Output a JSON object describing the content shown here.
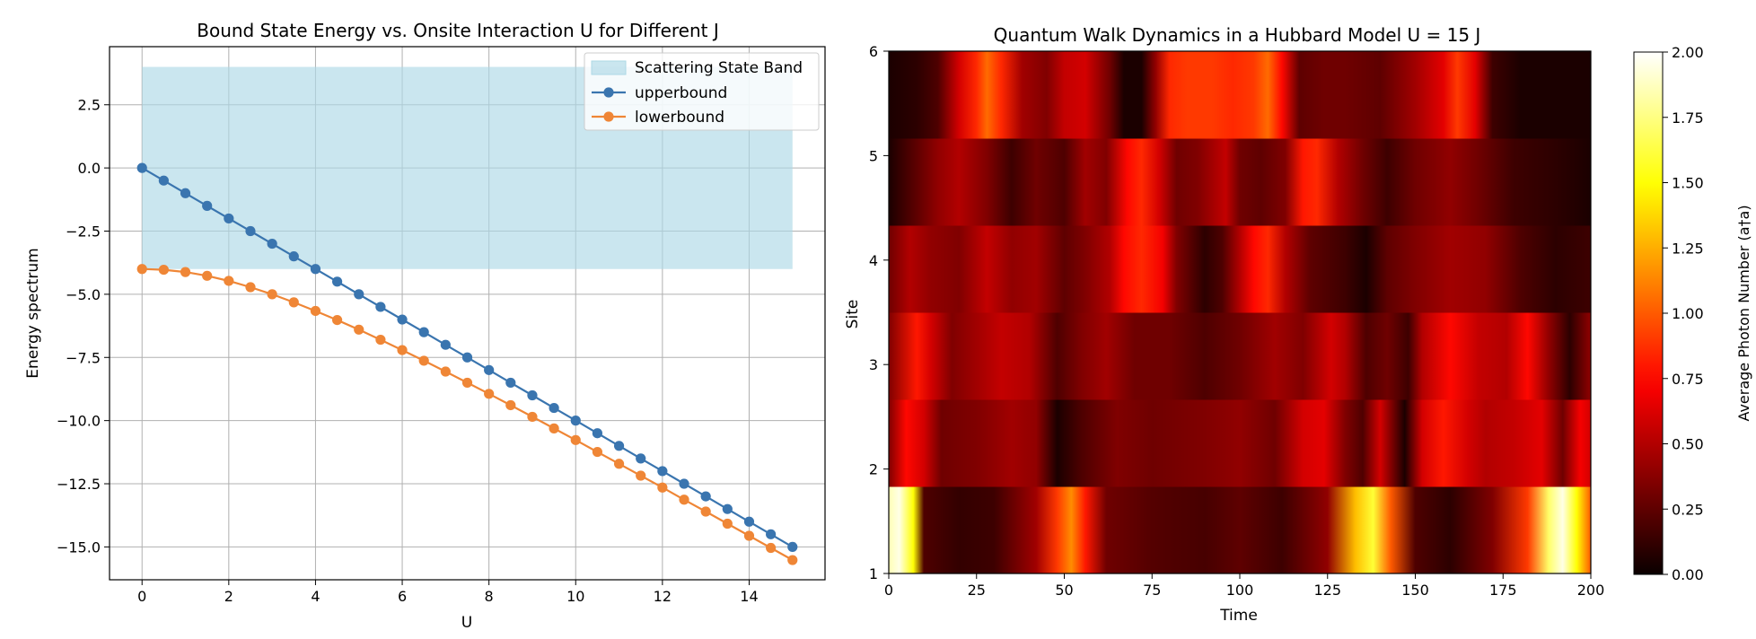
{
  "chart_data": [
    {
      "type": "line",
      "title": "Bound State Energy vs. Onsite Interaction U for Different J",
      "xlabel": "U",
      "ylabel": "Energy  spectrum",
      "xlim": [
        -0.75,
        15.75
      ],
      "ylim": [
        -16.3,
        4.8
      ],
      "xticks": [
        0,
        2,
        4,
        6,
        8,
        10,
        12,
        14
      ],
      "yticks": [
        2.5,
        0.0,
        -2.5,
        -5.0,
        -7.5,
        -10.0,
        -12.5,
        -15.0
      ],
      "ytick_labels": [
        "2.5",
        "0.0",
        "−2.5",
        "−5.0",
        "−7.5",
        "−10.0",
        "−12.5",
        "−15.0"
      ],
      "grid": true,
      "legend_position": "top-right",
      "band": {
        "name": "Scattering State Band",
        "x": [
          0,
          15
        ],
        "y_low": -4,
        "y_high": 4,
        "color": "#add8e6"
      },
      "x": [
        0,
        0.5,
        1,
        1.5,
        2,
        2.5,
        3,
        3.5,
        4,
        4.5,
        5,
        5.5,
        6,
        6.5,
        7,
        7.5,
        8,
        8.5,
        9,
        9.5,
        10,
        10.5,
        11,
        11.5,
        12,
        12.5,
        13,
        13.5,
        14,
        14.5,
        15
      ],
      "series": [
        {
          "name": "upperbound",
          "color": "#3a75af",
          "values": [
            0,
            -0.5,
            -1,
            -1.5,
            -2,
            -2.5,
            -3,
            -3.5,
            -4,
            -4.5,
            -5,
            -5.5,
            -6,
            -6.5,
            -7,
            -7.5,
            -8,
            -8.5,
            -9,
            -9.5,
            -10,
            -10.5,
            -11,
            -11.5,
            -12,
            -12.5,
            -13,
            -13.5,
            -14,
            -14.5,
            -15
          ]
        },
        {
          "name": "lowerbound",
          "color": "#ef8636",
          "values": [
            -4.0,
            -4.03,
            -4.12,
            -4.27,
            -4.47,
            -4.72,
            -5.0,
            -5.32,
            -5.66,
            -6.02,
            -6.4,
            -6.8,
            -7.21,
            -7.63,
            -8.06,
            -8.5,
            -8.94,
            -9.39,
            -9.85,
            -10.31,
            -10.77,
            -11.24,
            -11.71,
            -12.18,
            -12.65,
            -13.13,
            -13.6,
            -14.08,
            -14.56,
            -15.04,
            -15.52
          ]
        }
      ]
    },
    {
      "type": "heatmap",
      "title": "Quantum Walk Dynamics in a Hubbard Model U = 15 J",
      "xlabel": "Time",
      "ylabel": "Site",
      "xlim": [
        0,
        200
      ],
      "ylim": [
        1,
        6
      ],
      "xticks": [
        0,
        25,
        50,
        75,
        100,
        125,
        150,
        175,
        200
      ],
      "yticks": [
        1,
        2,
        3,
        4,
        5,
        6
      ],
      "colormap": "hot",
      "colorbar": {
        "label": "Average Photon Number (a†a)",
        "range": [
          0,
          2
        ],
        "ticks": [
          "0.00",
          "0.25",
          "0.50",
          "0.75",
          "1.00",
          "1.25",
          "1.50",
          "1.75",
          "2.00"
        ]
      },
      "rows": [
        {
          "site": 1,
          "keypoints": [
            [
              0,
              1.85
            ],
            [
              3,
              1.95
            ],
            [
              7,
              1.5
            ],
            [
              10,
              0.2
            ],
            [
              20,
              0.12
            ],
            [
              30,
              0.15
            ],
            [
              42,
              0.45
            ],
            [
              48,
              0.9
            ],
            [
              52,
              1.15
            ],
            [
              56,
              0.8
            ],
            [
              62,
              0.3
            ],
            [
              75,
              0.22
            ],
            [
              90,
              0.18
            ],
            [
              100,
              0.25
            ],
            [
              112,
              0.15
            ],
            [
              125,
              0.4
            ],
            [
              133,
              1.3
            ],
            [
              138,
              1.6
            ],
            [
              143,
              1.0
            ],
            [
              150,
              0.2
            ],
            [
              160,
              0.1
            ],
            [
              172,
              0.35
            ],
            [
              182,
              0.9
            ],
            [
              188,
              1.7
            ],
            [
              192,
              1.95
            ],
            [
              196,
              1.5
            ],
            [
              200,
              1.0
            ]
          ]
        },
        {
          "site": 2,
          "keypoints": [
            [
              0,
              0.35
            ],
            [
              5,
              0.75
            ],
            [
              10,
              0.6
            ],
            [
              15,
              0.3
            ],
            [
              25,
              0.35
            ],
            [
              35,
              0.45
            ],
            [
              42,
              0.4
            ],
            [
              48,
              0.05
            ],
            [
              55,
              0.2
            ],
            [
              65,
              0.35
            ],
            [
              75,
              0.3
            ],
            [
              90,
              0.35
            ],
            [
              100,
              0.4
            ],
            [
              110,
              0.3
            ],
            [
              118,
              0.6
            ],
            [
              124,
              0.65
            ],
            [
              130,
              0.35
            ],
            [
              135,
              0.2
            ],
            [
              140,
              0.6
            ],
            [
              147,
              0.05
            ],
            [
              152,
              0.6
            ],
            [
              158,
              0.8
            ],
            [
              165,
              0.6
            ],
            [
              170,
              0.5
            ],
            [
              178,
              0.55
            ],
            [
              186,
              0.65
            ],
            [
              192,
              0.3
            ],
            [
              197,
              0.7
            ],
            [
              200,
              0.6
            ]
          ]
        },
        {
          "site": 3,
          "keypoints": [
            [
              0,
              0.35
            ],
            [
              8,
              0.8
            ],
            [
              12,
              0.6
            ],
            [
              18,
              0.35
            ],
            [
              25,
              0.45
            ],
            [
              32,
              0.55
            ],
            [
              40,
              0.5
            ],
            [
              48,
              0.2
            ],
            [
              55,
              0.35
            ],
            [
              62,
              0.45
            ],
            [
              70,
              0.3
            ],
            [
              80,
              0.3
            ],
            [
              90,
              0.2
            ],
            [
              100,
              0.3
            ],
            [
              110,
              0.45
            ],
            [
              118,
              0.35
            ],
            [
              126,
              0.6
            ],
            [
              130,
              0.5
            ],
            [
              136,
              0.2
            ],
            [
              142,
              0.3
            ],
            [
              148,
              0.15
            ],
            [
              152,
              0.5
            ],
            [
              160,
              0.75
            ],
            [
              168,
              0.55
            ],
            [
              176,
              0.5
            ],
            [
              182,
              0.75
            ],
            [
              188,
              0.4
            ],
            [
              194,
              0.1
            ],
            [
              200,
              0.4
            ]
          ]
        },
        {
          "site": 4,
          "keypoints": [
            [
              0,
              0.3
            ],
            [
              6,
              0.5
            ],
            [
              12,
              0.4
            ],
            [
              20,
              0.35
            ],
            [
              28,
              0.55
            ],
            [
              35,
              0.4
            ],
            [
              42,
              0.45
            ],
            [
              50,
              0.25
            ],
            [
              56,
              0.35
            ],
            [
              63,
              0.5
            ],
            [
              67,
              0.75
            ],
            [
              72,
              0.85
            ],
            [
              78,
              0.7
            ],
            [
              82,
              0.35
            ],
            [
              90,
              0.1
            ],
            [
              95,
              0.2
            ],
            [
              100,
              0.5
            ],
            [
              104,
              0.75
            ],
            [
              108,
              0.85
            ],
            [
              113,
              0.5
            ],
            [
              120,
              0.25
            ],
            [
              130,
              0.15
            ],
            [
              136,
              0.05
            ],
            [
              142,
              0.25
            ],
            [
              150,
              0.35
            ],
            [
              160,
              0.45
            ],
            [
              170,
              0.4
            ],
            [
              180,
              0.2
            ],
            [
              190,
              0.1
            ],
            [
              200,
              0.15
            ]
          ]
        },
        {
          "site": 5,
          "keypoints": [
            [
              0,
              0.05
            ],
            [
              8,
              0.25
            ],
            [
              14,
              0.4
            ],
            [
              20,
              0.5
            ],
            [
              28,
              0.35
            ],
            [
              35,
              0.15
            ],
            [
              42,
              0.3
            ],
            [
              50,
              0.2
            ],
            [
              56,
              0.45
            ],
            [
              62,
              0.35
            ],
            [
              68,
              0.75
            ],
            [
              72,
              0.85
            ],
            [
              77,
              0.6
            ],
            [
              82,
              0.3
            ],
            [
              88,
              0.35
            ],
            [
              96,
              0.55
            ],
            [
              100,
              0.3
            ],
            [
              106,
              0.25
            ],
            [
              113,
              0.35
            ],
            [
              118,
              0.8
            ],
            [
              122,
              0.85
            ],
            [
              128,
              0.5
            ],
            [
              135,
              0.3
            ],
            [
              142,
              0.15
            ],
            [
              150,
              0.3
            ],
            [
              160,
              0.4
            ],
            [
              168,
              0.3
            ],
            [
              178,
              0.15
            ],
            [
              190,
              0.1
            ],
            [
              200,
              0.05
            ]
          ]
        },
        {
          "site": 6,
          "keypoints": [
            [
              0,
              0.05
            ],
            [
              8,
              0.1
            ],
            [
              14,
              0.2
            ],
            [
              20,
              0.6
            ],
            [
              25,
              0.85
            ],
            [
              28,
              1.05
            ],
            [
              32,
              0.85
            ],
            [
              38,
              0.45
            ],
            [
              45,
              0.35
            ],
            [
              50,
              0.55
            ],
            [
              56,
              0.6
            ],
            [
              63,
              0.3
            ],
            [
              67,
              0.05
            ],
            [
              72,
              0.05
            ],
            [
              76,
              0.4
            ],
            [
              80,
              0.85
            ],
            [
              85,
              0.9
            ],
            [
              92,
              0.9
            ],
            [
              98,
              0.85
            ],
            [
              104,
              0.9
            ],
            [
              108,
              1.05
            ],
            [
              112,
              0.75
            ],
            [
              117,
              0.25
            ],
            [
              124,
              0.3
            ],
            [
              130,
              0.3
            ],
            [
              140,
              0.25
            ],
            [
              150,
              0.45
            ],
            [
              158,
              0.65
            ],
            [
              162,
              0.9
            ],
            [
              167,
              0.65
            ],
            [
              172,
              0.15
            ],
            [
              180,
              0.05
            ],
            [
              190,
              0.05
            ],
            [
              200,
              0.05
            ]
          ]
        }
      ]
    }
  ]
}
